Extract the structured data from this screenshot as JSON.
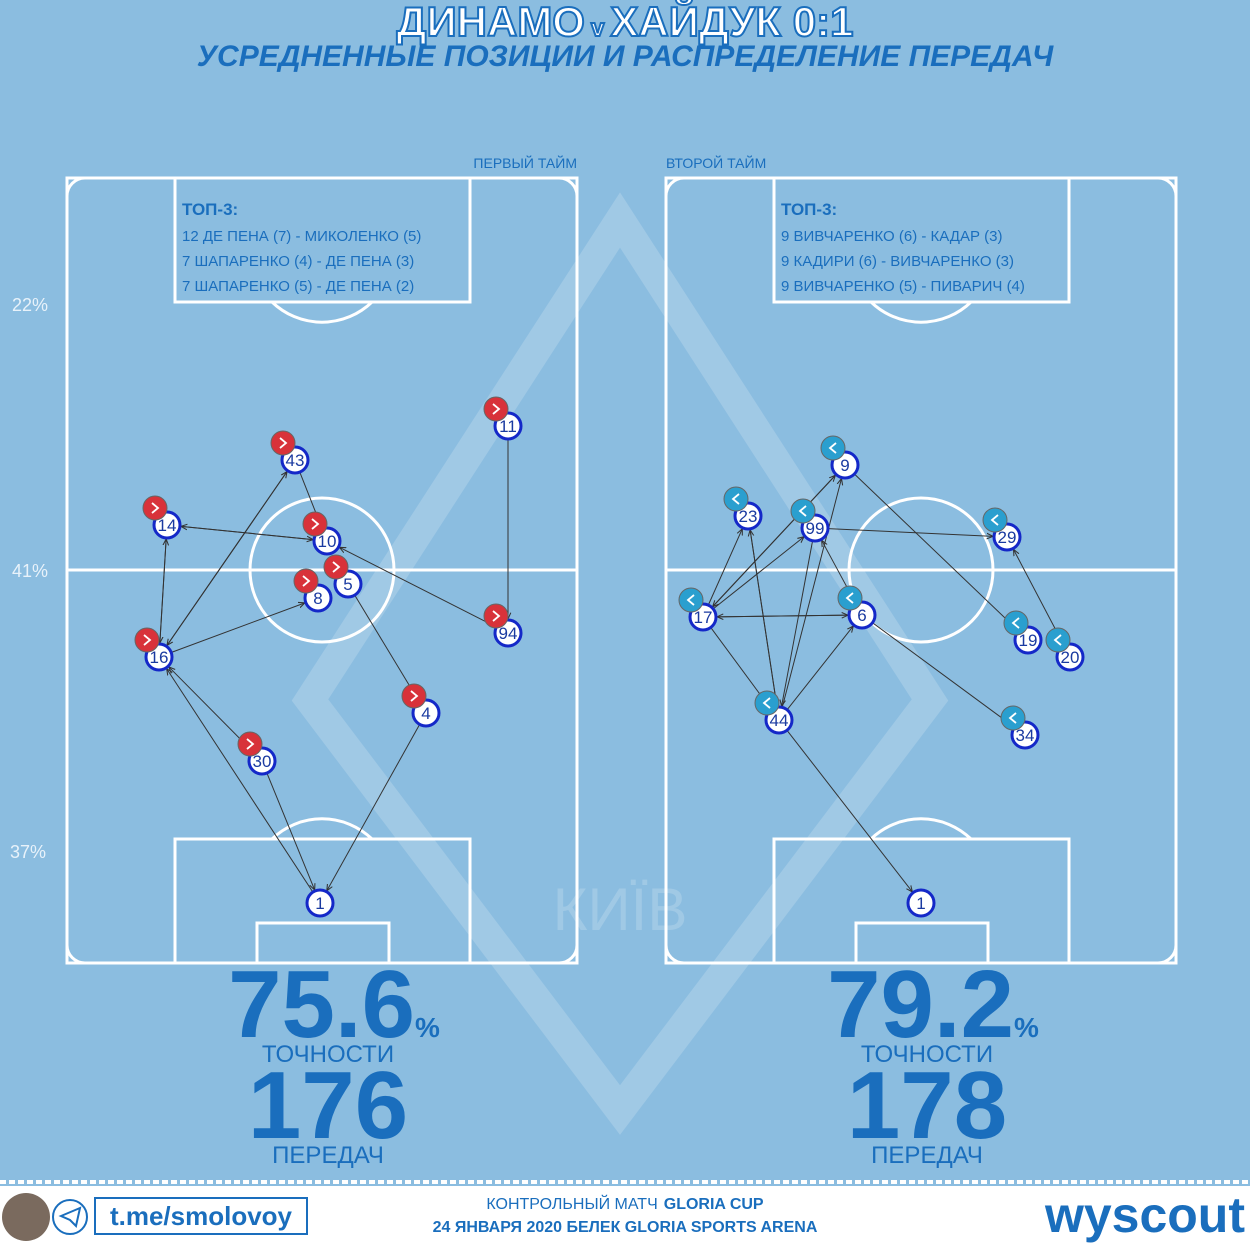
{
  "header": {
    "title": "ДИНАМО",
    "title_connector": "v",
    "title_rest": "ХАЙДУК 0:1",
    "subtitle": "УСРЕДНЕННЫЕ ПОЗИЦИИ И РАСПРЕДЕЛЕНИЕ ПЕРЕДАЧ"
  },
  "side_labels": [
    "22%",
    "41%",
    "37%"
  ],
  "halves": [
    {
      "label": "ПЕРВЫЙ ТАЙМ",
      "top3_title": "ТОП-3:",
      "top3": [
        "12 ДЕ ПЕНА (7) - МИКОЛЕНКО (5)",
        "7 ШАПАРЕНКО (4) - ДЕ ПЕНА (3)",
        "7 ШАПАРЕНКО (5) - ДЕ ПЕНА (2)"
      ],
      "players": [
        "43",
        "11",
        "14",
        "10",
        "8",
        "5",
        "16",
        "94",
        "4",
        "30",
        "1"
      ],
      "accuracy": "75.6",
      "accuracy_unit": "%",
      "accuracy_label": "ТОЧНОСТИ",
      "passes": "176",
      "passes_label": "ПЕРЕДАЧ"
    },
    {
      "label": "ВТОРОЙ ТАЙМ",
      "top3_title": "ТОП-3:",
      "top3": [
        "9 ВИВЧАРЕНКО (6) - КАДАР (3)",
        "9 КАДИРИ (6) - ВИВЧАРЕНКО (3)",
        "9 ВИВЧАРЕНКО (5) - ПИВАРИЧ (4)"
      ],
      "players": [
        "9",
        "23",
        "99",
        "29",
        "17",
        "6",
        "19",
        "20",
        "44",
        "34",
        "1"
      ],
      "accuracy": "79.2",
      "accuracy_unit": "%",
      "accuracy_label": "ТОЧНОСТИ",
      "passes": "178",
      "passes_label": "ПЕРЕДАЧ"
    }
  ],
  "footer": {
    "channel": "t.me/smolovoy",
    "match_type": "КОНТРОЛЬНЫЙ МАТЧ",
    "cup": "GLORIA CUP",
    "date_venue": "24 ЯНВАРЯ 2020 БЕЛЕК GLORIA SPORTS ARENA",
    "brand": "wyscout"
  }
}
